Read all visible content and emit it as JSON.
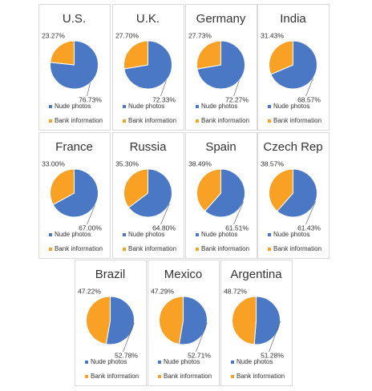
{
  "chart_data": [
    {
      "type": "pie",
      "title": "U.S.",
      "categories": [
        "Nude photos",
        "Bank information"
      ],
      "values": [
        76.73,
        23.27
      ],
      "value_labels": [
        "76.73%",
        "23.27%"
      ],
      "colors": [
        "#4a78c4",
        "#f9a125"
      ]
    },
    {
      "type": "pie",
      "title": "U.K.",
      "categories": [
        "Nude photos",
        "Bank information"
      ],
      "values": [
        72.33,
        27.7
      ],
      "value_labels": [
        "72.33%",
        "27.70%"
      ],
      "colors": [
        "#4a78c4",
        "#f9a125"
      ]
    },
    {
      "type": "pie",
      "title": "Germany",
      "categories": [
        "Nude photos",
        "Bank information"
      ],
      "values": [
        72.27,
        27.73
      ],
      "value_labels": [
        "72.27%",
        "27.73%"
      ],
      "colors": [
        "#4a78c4",
        "#f9a125"
      ]
    },
    {
      "type": "pie",
      "title": "India",
      "categories": [
        "Nude photos",
        "Bank information"
      ],
      "values": [
        68.57,
        31.43
      ],
      "value_labels": [
        "68.57%",
        "31.43%"
      ],
      "colors": [
        "#4a78c4",
        "#f9a125"
      ]
    },
    {
      "type": "pie",
      "title": "France",
      "categories": [
        "Nude photos",
        "Bank information"
      ],
      "values": [
        67,
        33
      ],
      "value_labels": [
        "67.00%",
        "33.00%"
      ],
      "colors": [
        "#4a78c4",
        "#f9a125"
      ]
    },
    {
      "type": "pie",
      "title": "Russia",
      "categories": [
        "Nude photos",
        "Bank information"
      ],
      "values": [
        64.8,
        35.3
      ],
      "value_labels": [
        "64.80%",
        "35.30%"
      ],
      "colors": [
        "#4a78c4",
        "#f9a125"
      ]
    },
    {
      "type": "pie",
      "title": "Spain",
      "categories": [
        "Nude photos",
        "Bank information"
      ],
      "values": [
        61.51,
        38.49
      ],
      "value_labels": [
        "61.51%",
        "38.49%"
      ],
      "colors": [
        "#4a78c4",
        "#f9a125"
      ]
    },
    {
      "type": "pie",
      "title": "Czech Rep",
      "categories": [
        "Nude photos",
        "Bank information"
      ],
      "values": [
        61.43,
        38.57
      ],
      "value_labels": [
        "61.43%",
        "38.57%"
      ],
      "colors": [
        "#4a78c4",
        "#f9a125"
      ]
    },
    {
      "type": "pie",
      "title": "Brazil",
      "categories": [
        "Nude photos",
        "Bank information"
      ],
      "values": [
        52.78,
        47.22
      ],
      "value_labels": [
        "52.78%",
        "47.22%"
      ],
      "colors": [
        "#4a78c4",
        "#f9a125"
      ]
    },
    {
      "type": "pie",
      "title": "Mexico",
      "categories": [
        "Nude photos",
        "Bank information"
      ],
      "values": [
        52.71,
        47.29
      ],
      "value_labels": [
        "52.71%",
        "47.29%"
      ],
      "colors": [
        "#4a78c4",
        "#f9a125"
      ]
    },
    {
      "type": "pie",
      "title": "Argentina",
      "categories": [
        "Nude photos",
        "Bank information"
      ],
      "values": [
        51.28,
        48.72
      ],
      "value_labels": [
        "51.28%",
        "48.72%"
      ],
      "colors": [
        "#4a78c4",
        "#f9a125"
      ]
    }
  ]
}
